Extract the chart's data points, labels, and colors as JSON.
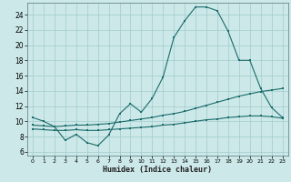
{
  "xlabel": "Humidex (Indice chaleur)",
  "bg_color": "#cce8e8",
  "line_color": "#1a6b6b",
  "grid_color": "#a0cccc",
  "xlim": [
    -0.5,
    23.5
  ],
  "ylim": [
    5.5,
    25.5
  ],
  "xticks": [
    0,
    1,
    2,
    3,
    4,
    5,
    6,
    7,
    8,
    9,
    10,
    11,
    12,
    13,
    14,
    15,
    16,
    17,
    18,
    19,
    20,
    21,
    22,
    23
  ],
  "yticks": [
    6,
    8,
    10,
    12,
    14,
    16,
    18,
    20,
    22,
    24
  ],
  "curve1_x": [
    0,
    1,
    2,
    3,
    4,
    5,
    6,
    7,
    8,
    9,
    10,
    11,
    12,
    13,
    14,
    15,
    16,
    17,
    18,
    19,
    20,
    21,
    22,
    23
  ],
  "curve1_y": [
    10.5,
    10.0,
    9.3,
    7.5,
    8.3,
    7.2,
    6.8,
    8.2,
    11.0,
    12.3,
    11.2,
    13.0,
    15.8,
    21.0,
    23.2,
    25.0,
    25.0,
    24.5,
    21.8,
    18.0,
    18.0,
    14.3,
    11.8,
    10.5
  ],
  "curve2_x": [
    0,
    1,
    2,
    3,
    4,
    5,
    6,
    7,
    8,
    9,
    10,
    11,
    12,
    13,
    14,
    15,
    16,
    17,
    18,
    19,
    20,
    21,
    22,
    23
  ],
  "curve2_y": [
    9.5,
    9.4,
    9.3,
    9.4,
    9.5,
    9.5,
    9.6,
    9.7,
    9.9,
    10.1,
    10.3,
    10.5,
    10.8,
    11.0,
    11.3,
    11.7,
    12.1,
    12.5,
    12.9,
    13.3,
    13.6,
    13.9,
    14.1,
    14.3
  ],
  "curve3_x": [
    0,
    1,
    2,
    3,
    4,
    5,
    6,
    7,
    8,
    9,
    10,
    11,
    12,
    13,
    14,
    15,
    16,
    17,
    18,
    19,
    20,
    21,
    22,
    23
  ],
  "curve3_y": [
    9.0,
    8.9,
    8.8,
    8.8,
    8.9,
    8.8,
    8.8,
    8.9,
    9.0,
    9.1,
    9.2,
    9.3,
    9.5,
    9.6,
    9.8,
    10.0,
    10.2,
    10.3,
    10.5,
    10.6,
    10.7,
    10.7,
    10.6,
    10.4
  ]
}
